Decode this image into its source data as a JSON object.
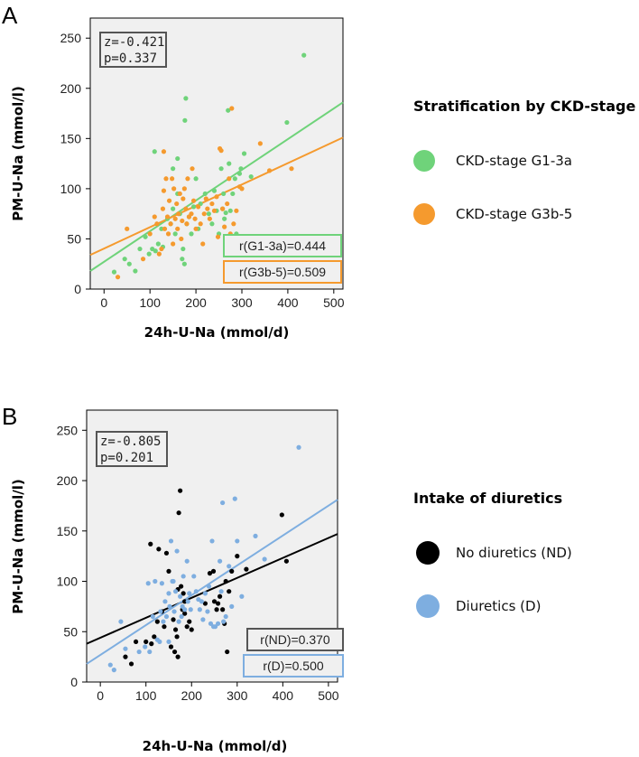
{
  "chart_data": [
    {
      "panel_label": "A",
      "type": "scatter",
      "xlabel": "24h-U-Na (mmol/d)",
      "ylabel": "PM-U-Na (mmol/l)",
      "xlim": [
        -30,
        520
      ],
      "ylim": [
        0,
        270
      ],
      "xticks": [
        0,
        100,
        200,
        300,
        400,
        500
      ],
      "yticks": [
        0,
        50,
        100,
        150,
        200,
        250
      ],
      "stats": {
        "z": "z=-0.421",
        "p": "p=0.337"
      },
      "legend_title": "Stratification by CKD-stage",
      "series": [
        {
          "name": "CKD-stage G1-3a",
          "color": "#6fd37a",
          "corr_label": "r(G1-3a)=0.444",
          "fit": [
            -30,
            18,
            520,
            186
          ],
          "points": [
            [
              22,
              17
            ],
            [
              45,
              30
            ],
            [
              55,
              25
            ],
            [
              68,
              18
            ],
            [
              78,
              40
            ],
            [
              90,
              52
            ],
            [
              98,
              35
            ],
            [
              105,
              40
            ],
            [
              112,
              38
            ],
            [
              118,
              45
            ],
            [
              125,
              60
            ],
            [
              128,
              42
            ],
            [
              138,
              70
            ],
            [
              145,
              65
            ],
            [
              150,
              80
            ],
            [
              155,
              55
            ],
            [
              160,
              95
            ],
            [
              165,
              75
            ],
            [
              170,
              30
            ],
            [
              172,
              40
            ],
            [
              175,
              25
            ],
            [
              176,
              168
            ],
            [
              178,
              190
            ],
            [
              180,
              65
            ],
            [
              185,
              72
            ],
            [
              190,
              55
            ],
            [
              195,
              82
            ],
            [
              200,
              110
            ],
            [
              205,
              60
            ],
            [
              210,
              85
            ],
            [
              220,
              95
            ],
            [
              228,
              75
            ],
            [
              235,
              65
            ],
            [
              240,
              98
            ],
            [
              245,
              78
            ],
            [
              250,
              55
            ],
            [
              255,
              120
            ],
            [
              258,
              80
            ],
            [
              260,
              95
            ],
            [
              262,
              70
            ],
            [
              265,
              76
            ],
            [
              270,
              178
            ],
            [
              272,
              125
            ],
            [
              275,
              78
            ],
            [
              280,
              95
            ],
            [
              285,
              110
            ],
            [
              288,
              55
            ],
            [
              295,
              115
            ],
            [
              298,
              120
            ],
            [
              305,
              135
            ],
            [
              320,
              112
            ],
            [
              398,
              166
            ],
            [
              435,
              233
            ],
            [
              110,
              137
            ],
            [
              160,
              130
            ],
            [
              150,
              120
            ]
          ]
        },
        {
          "name": "CKD-stage G3b-5",
          "color": "#f59a2e",
          "corr_label": "r(G3b-5)=0.509",
          "fit": [
            -30,
            34,
            520,
            151
          ],
          "points": [
            [
              30,
              12
            ],
            [
              50,
              60
            ],
            [
              85,
              30
            ],
            [
              100,
              55
            ],
            [
              110,
              72
            ],
            [
              115,
              65
            ],
            [
              120,
              35
            ],
            [
              125,
              40
            ],
            [
              128,
              80
            ],
            [
              130,
              98
            ],
            [
              132,
              60
            ],
            [
              135,
              110
            ],
            [
              138,
              72
            ],
            [
              140,
              55
            ],
            [
              142,
              88
            ],
            [
              145,
              65
            ],
            [
              150,
              45
            ],
            [
              152,
              100
            ],
            [
              155,
              70
            ],
            [
              158,
              85
            ],
            [
              160,
              60
            ],
            [
              162,
              75
            ],
            [
              165,
              95
            ],
            [
              168,
              50
            ],
            [
              170,
              68
            ],
            [
              172,
              90
            ],
            [
              175,
              100
            ],
            [
              178,
              80
            ],
            [
              180,
              65
            ],
            [
              182,
              110
            ],
            [
              185,
              72
            ],
            [
              190,
              75
            ],
            [
              192,
              120
            ],
            [
              195,
              88
            ],
            [
              198,
              70
            ],
            [
              200,
              60
            ],
            [
              205,
              82
            ],
            [
              210,
              65
            ],
            [
              215,
              45
            ],
            [
              218,
              75
            ],
            [
              222,
              90
            ],
            [
              225,
              80
            ],
            [
              230,
              70
            ],
            [
              235,
              85
            ],
            [
              240,
              78
            ],
            [
              245,
              92
            ],
            [
              248,
              52
            ],
            [
              252,
              140
            ],
            [
              255,
              138
            ],
            [
              258,
              80
            ],
            [
              262,
              62
            ],
            [
              268,
              85
            ],
            [
              272,
              110
            ],
            [
              275,
              55
            ],
            [
              278,
              180
            ],
            [
              282,
              65
            ],
            [
              288,
              78
            ],
            [
              295,
              102
            ],
            [
              300,
              100
            ],
            [
              340,
              145
            ],
            [
              360,
              118
            ],
            [
              408,
              120
            ],
            [
              130,
              137
            ],
            [
              148,
              110
            ]
          ]
        }
      ]
    },
    {
      "panel_label": "B",
      "type": "scatter",
      "xlabel": "24h-U-Na (mmol/d)",
      "ylabel": "PM-U-Na (mmol/l)",
      "xlim": [
        -30,
        520
      ],
      "ylim": [
        0,
        270
      ],
      "xticks": [
        0,
        100,
        200,
        300,
        400,
        500
      ],
      "yticks": [
        0,
        50,
        100,
        150,
        200,
        250
      ],
      "stats": {
        "z": "z=-0.805",
        "p": "p=0.201"
      },
      "legend_title": "Intake of diuretics",
      "series": [
        {
          "name": "No diuretics (ND)",
          "color": "#000000",
          "corr_label": "r(ND)=0.370",
          "fit": [
            -30,
            38,
            520,
            147
          ],
          "points": [
            [
              55,
              25
            ],
            [
              68,
              18
            ],
            [
              78,
              40
            ],
            [
              100,
              40
            ],
            [
              110,
              137
            ],
            [
              112,
              38
            ],
            [
              118,
              45
            ],
            [
              125,
              60
            ],
            [
              128,
              132
            ],
            [
              135,
              70
            ],
            [
              140,
              55
            ],
            [
              145,
              128
            ],
            [
              150,
              110
            ],
            [
              155,
              35
            ],
            [
              160,
              62
            ],
            [
              163,
              30
            ],
            [
              165,
              52
            ],
            [
              168,
              45
            ],
            [
              170,
              25
            ],
            [
              172,
              168
            ],
            [
              175,
              190
            ],
            [
              177,
              95
            ],
            [
              180,
              72
            ],
            [
              182,
              88
            ],
            [
              185,
              68
            ],
            [
              190,
              55
            ],
            [
              195,
              60
            ],
            [
              200,
              52
            ],
            [
              230,
              78
            ],
            [
              240,
              108
            ],
            [
              248,
              110
            ],
            [
              250,
              80
            ],
            [
              255,
              72
            ],
            [
              258,
              78
            ],
            [
              262,
              85
            ],
            [
              268,
              72
            ],
            [
              272,
              58
            ],
            [
              275,
              100
            ],
            [
              278,
              30
            ],
            [
              282,
              90
            ],
            [
              288,
              110
            ],
            [
              300,
              125
            ],
            [
              320,
              112
            ],
            [
              398,
              166
            ],
            [
              408,
              120
            ],
            [
              170,
              92
            ],
            [
              185,
              80
            ]
          ]
        },
        {
          "name": "Diuretics (D)",
          "color": "#7eaee0",
          "corr_label": "r(D)=0.500",
          "fit": [
            -30,
            18,
            520,
            181
          ],
          "points": [
            [
              22,
              17
            ],
            [
              30,
              12
            ],
            [
              45,
              60
            ],
            [
              55,
              33
            ],
            [
              85,
              30
            ],
            [
              98,
              35
            ],
            [
              105,
              98
            ],
            [
              108,
              30
            ],
            [
              115,
              65
            ],
            [
              120,
              100
            ],
            [
              125,
              42
            ],
            [
              130,
              40
            ],
            [
              132,
              70
            ],
            [
              135,
              98
            ],
            [
              138,
              60
            ],
            [
              142,
              80
            ],
            [
              145,
              65
            ],
            [
              150,
              88
            ],
            [
              152,
              75
            ],
            [
              155,
              140
            ],
            [
              158,
              100
            ],
            [
              160,
              100
            ],
            [
              162,
              70
            ],
            [
              165,
              90
            ],
            [
              168,
              130
            ],
            [
              172,
              60
            ],
            [
              175,
              85
            ],
            [
              178,
              65
            ],
            [
              180,
              75
            ],
            [
              182,
              105
            ],
            [
              185,
              72
            ],
            [
              190,
              120
            ],
            [
              192,
              80
            ],
            [
              195,
              88
            ],
            [
              198,
              72
            ],
            [
              205,
              105
            ],
            [
              210,
              90
            ],
            [
              215,
              82
            ],
            [
              218,
              72
            ],
            [
              222,
              80
            ],
            [
              225,
              62
            ],
            [
              230,
              88
            ],
            [
              235,
              70
            ],
            [
              238,
              95
            ],
            [
              242,
              58
            ],
            [
              245,
              140
            ],
            [
              248,
              55
            ],
            [
              252,
              55
            ],
            [
              258,
              58
            ],
            [
              262,
              120
            ],
            [
              265,
              90
            ],
            [
              268,
              178
            ],
            [
              270,
              60
            ],
            [
              275,
              65
            ],
            [
              282,
              115
            ],
            [
              288,
              75
            ],
            [
              295,
              182
            ],
            [
              300,
              140
            ],
            [
              310,
              85
            ],
            [
              340,
              145
            ],
            [
              360,
              122
            ],
            [
              435,
              233
            ],
            [
              150,
              40
            ]
          ]
        }
      ]
    }
  ]
}
